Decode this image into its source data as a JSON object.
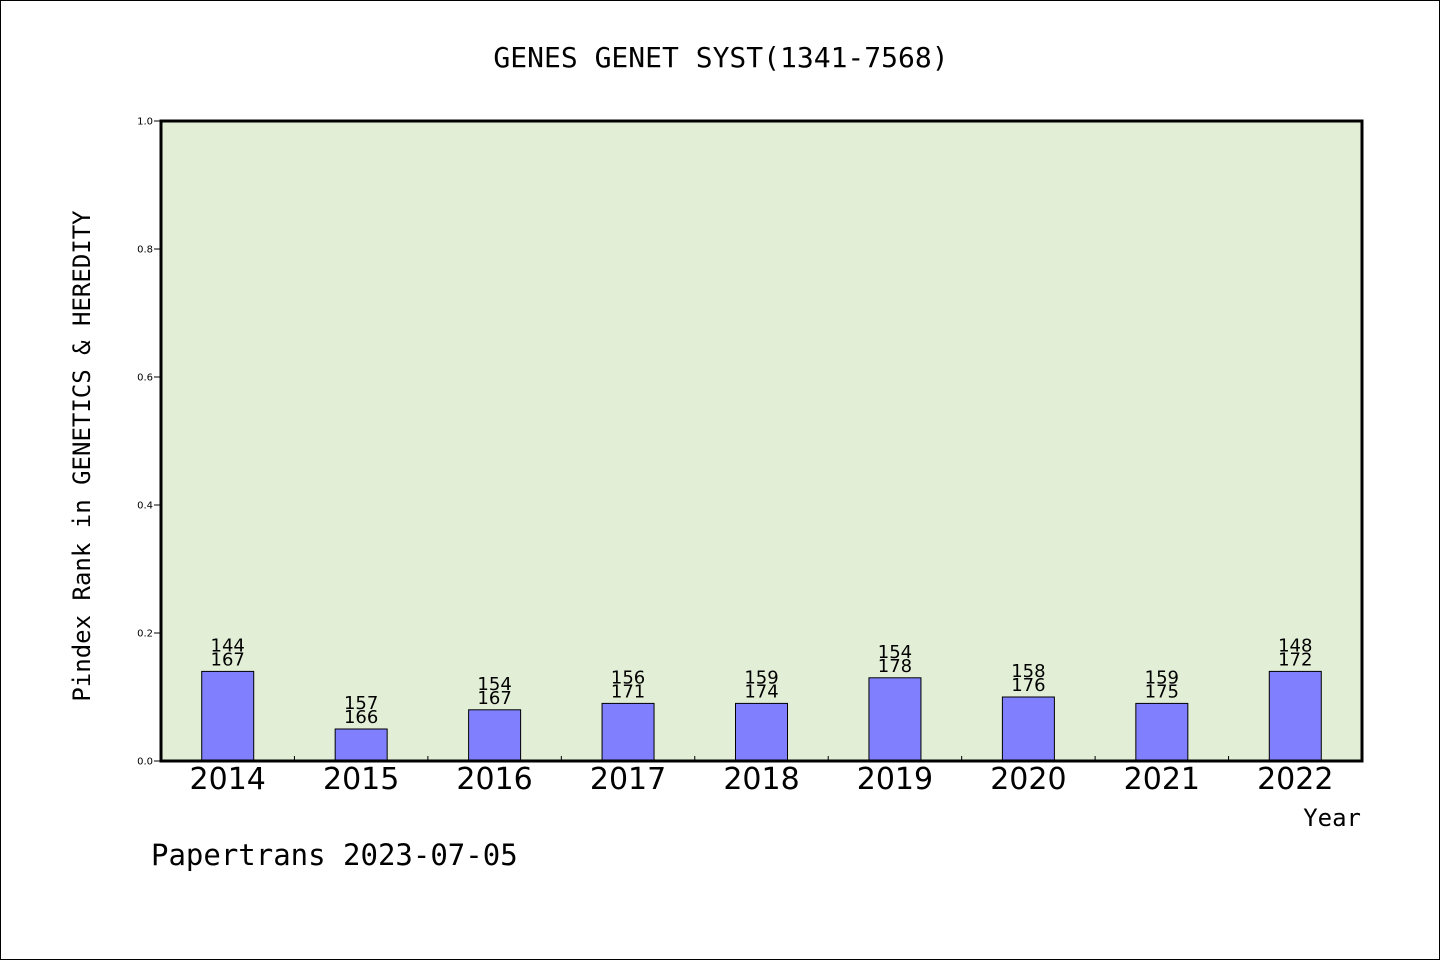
{
  "footer": "Papertrans 2023-07-05",
  "chart_data": {
    "type": "bar",
    "title": "GENES GENET SYST(1341-7568)",
    "xlabel": "Year",
    "ylabel": "Pindex Rank in GENETICS & HEREDITY",
    "ylim": [
      0,
      1.0
    ],
    "yticks": [
      "0.0",
      "0.2",
      "0.4",
      "0.6",
      "0.8",
      "1.0"
    ],
    "grid": false,
    "categories": [
      "2014",
      "2015",
      "2016",
      "2017",
      "2018",
      "2019",
      "2020",
      "2021",
      "2022"
    ],
    "values": [
      0.14,
      0.05,
      0.08,
      0.09,
      0.09,
      0.13,
      0.1,
      0.09,
      0.14
    ],
    "annotations": [
      {
        "rank": "144",
        "total": "167"
      },
      {
        "rank": "157",
        "total": "166"
      },
      {
        "rank": "154",
        "total": "167"
      },
      {
        "rank": "156",
        "total": "171"
      },
      {
        "rank": "159",
        "total": "174"
      },
      {
        "rank": "154",
        "total": "178"
      },
      {
        "rank": "158",
        "total": "176"
      },
      {
        "rank": "159",
        "total": "175"
      },
      {
        "rank": "148",
        "total": "172"
      }
    ],
    "colors": {
      "plot_background": "#e2efd6",
      "bar_fill": "#8080ff",
      "bar_stroke": "#000000"
    }
  }
}
